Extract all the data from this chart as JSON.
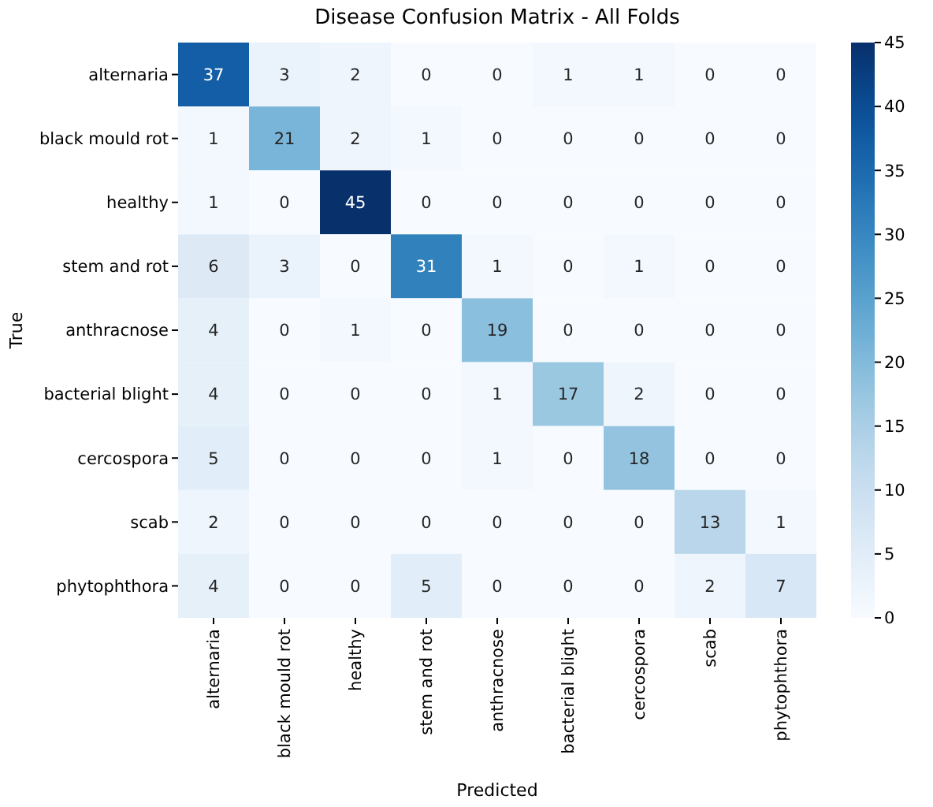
{
  "chart_data": {
    "type": "heatmap",
    "title": "Disease Confusion Matrix - All Folds",
    "xlabel": "Predicted",
    "ylabel": "True",
    "categories": [
      "alternaria",
      "black mould rot",
      "healthy",
      "stem and rot",
      "anthracnose",
      "bacterial blight",
      "cercospora",
      "scab",
      "phytophthora"
    ],
    "y_categories": [
      "alternaria",
      "black mould rot",
      "healthy",
      "stem and rot",
      "anthracnose",
      "bacterial blight",
      "cercospora",
      "scab",
      "phytophthora"
    ],
    "cells": [
      [
        37,
        3,
        2,
        0,
        0,
        1,
        1,
        0,
        0
      ],
      [
        1,
        21,
        2,
        1,
        0,
        0,
        0,
        0,
        0
      ],
      [
        1,
        0,
        45,
        0,
        0,
        0,
        0,
        0,
        0
      ],
      [
        6,
        3,
        0,
        31,
        1,
        0,
        1,
        0,
        0
      ],
      [
        4,
        0,
        1,
        0,
        19,
        0,
        0,
        0,
        0
      ],
      [
        4,
        0,
        0,
        0,
        1,
        17,
        2,
        0,
        0
      ],
      [
        5,
        0,
        0,
        0,
        1,
        0,
        18,
        0,
        0
      ],
      [
        2,
        0,
        0,
        0,
        0,
        0,
        0,
        13,
        1
      ],
      [
        4,
        0,
        0,
        5,
        0,
        0,
        0,
        2,
        7
      ]
    ],
    "data_labels": true,
    "clim": [
      0,
      45
    ],
    "cticks": [
      0,
      5,
      10,
      15,
      20,
      25,
      30,
      35,
      40,
      45
    ]
  }
}
